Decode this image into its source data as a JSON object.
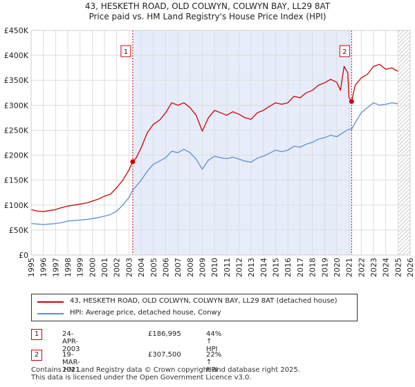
{
  "title_line1": "43, HESKETH ROAD, OLD COLWYN, COLWYN BAY, LL29 8AT",
  "title_line2": "Price paid vs. HM Land Registry's House Price Index (HPI)",
  "chart_data": {
    "type": "line",
    "xlim": [
      1995,
      2026
    ],
    "ylim": [
      0,
      450000
    ],
    "x_ticks": [
      1995,
      1996,
      1997,
      1998,
      1999,
      2000,
      2001,
      2002,
      2003,
      2004,
      2005,
      2006,
      2007,
      2008,
      2009,
      2010,
      2011,
      2012,
      2013,
      2014,
      2015,
      2016,
      2017,
      2018,
      2019,
      2020,
      2021,
      2022,
      2023,
      2024,
      2025,
      2026
    ],
    "y_ticks": [
      {
        "value": 0,
        "label": "£0"
      },
      {
        "value": 50000,
        "label": "£50K"
      },
      {
        "value": 100000,
        "label": "£100K"
      },
      {
        "value": 150000,
        "label": "£150K"
      },
      {
        "value": 200000,
        "label": "£200K"
      },
      {
        "value": 250000,
        "label": "£250K"
      },
      {
        "value": 300000,
        "label": "£300K"
      },
      {
        "value": 350000,
        "label": "£350K"
      },
      {
        "value": 400000,
        "label": "£400K"
      },
      {
        "value": 450000,
        "label": "£450K"
      }
    ],
    "shaded_range": [
      2003.31,
      2021.21
    ],
    "future_hatch_from": 2025.0,
    "series": [
      {
        "name": "43, HESKETH ROAD, OLD COLWYN, COLWYN BAY, LL29 8AT (detached house)",
        "color": "#cc0000",
        "points": [
          [
            1995,
            91000
          ],
          [
            1995.5,
            88000
          ],
          [
            1996,
            87000
          ],
          [
            1996.5,
            89000
          ],
          [
            1997,
            91000
          ],
          [
            1997.5,
            95000
          ],
          [
            1998,
            98000
          ],
          [
            1998.5,
            100000
          ],
          [
            1999,
            102000
          ],
          [
            1999.5,
            104000
          ],
          [
            2000,
            108000
          ],
          [
            2000.5,
            112000
          ],
          [
            2001,
            118000
          ],
          [
            2001.5,
            122000
          ],
          [
            2002,
            135000
          ],
          [
            2002.5,
            150000
          ],
          [
            2003,
            170000
          ],
          [
            2003.31,
            186995
          ],
          [
            2003.6,
            195000
          ],
          [
            2004,
            215000
          ],
          [
            2004.5,
            245000
          ],
          [
            2005,
            262000
          ],
          [
            2005.5,
            270000
          ],
          [
            2006,
            285000
          ],
          [
            2006.5,
            305000
          ],
          [
            2007,
            300000
          ],
          [
            2007.5,
            305000
          ],
          [
            2008,
            295000
          ],
          [
            2008.5,
            280000
          ],
          [
            2009,
            248000
          ],
          [
            2009.5,
            275000
          ],
          [
            2010,
            290000
          ],
          [
            2010.5,
            285000
          ],
          [
            2011,
            280000
          ],
          [
            2011.5,
            287000
          ],
          [
            2012,
            282000
          ],
          [
            2012.5,
            275000
          ],
          [
            2013,
            272000
          ],
          [
            2013.5,
            285000
          ],
          [
            2014,
            290000
          ],
          [
            2014.5,
            298000
          ],
          [
            2015,
            305000
          ],
          [
            2015.5,
            302000
          ],
          [
            2016,
            305000
          ],
          [
            2016.5,
            318000
          ],
          [
            2017,
            315000
          ],
          [
            2017.5,
            325000
          ],
          [
            2018,
            330000
          ],
          [
            2018.5,
            340000
          ],
          [
            2019,
            345000
          ],
          [
            2019.5,
            352000
          ],
          [
            2020,
            346000
          ],
          [
            2020.3,
            330000
          ],
          [
            2020.6,
            378000
          ],
          [
            2020.9,
            365000
          ],
          [
            2021.0,
            315000
          ],
          [
            2021.21,
            307500
          ],
          [
            2021.5,
            340000
          ],
          [
            2022,
            355000
          ],
          [
            2022.5,
            362000
          ],
          [
            2023,
            378000
          ],
          [
            2023.5,
            382000
          ],
          [
            2024,
            372000
          ],
          [
            2024.5,
            375000
          ],
          [
            2025,
            368000
          ]
        ]
      },
      {
        "name": "HPI: Average price, detached house, Conwy",
        "color": "#5b8fcf",
        "points": [
          [
            1995,
            63000
          ],
          [
            1995.5,
            62000
          ],
          [
            1996,
            61000
          ],
          [
            1996.5,
            62000
          ],
          [
            1997,
            63000
          ],
          [
            1997.5,
            65000
          ],
          [
            1998,
            68000
          ],
          [
            1998.5,
            69000
          ],
          [
            1999,
            70000
          ],
          [
            1999.5,
            71000
          ],
          [
            2000,
            73000
          ],
          [
            2000.5,
            75000
          ],
          [
            2001,
            78000
          ],
          [
            2001.5,
            81000
          ],
          [
            2002,
            88000
          ],
          [
            2002.5,
            100000
          ],
          [
            2003,
            115000
          ],
          [
            2003.31,
            130000
          ],
          [
            2003.6,
            138000
          ],
          [
            2004,
            150000
          ],
          [
            2004.5,
            168000
          ],
          [
            2005,
            182000
          ],
          [
            2005.5,
            188000
          ],
          [
            2006,
            195000
          ],
          [
            2006.5,
            208000
          ],
          [
            2007,
            205000
          ],
          [
            2007.5,
            212000
          ],
          [
            2008,
            205000
          ],
          [
            2008.5,
            192000
          ],
          [
            2009,
            172000
          ],
          [
            2009.5,
            190000
          ],
          [
            2010,
            198000
          ],
          [
            2010.5,
            195000
          ],
          [
            2011,
            193000
          ],
          [
            2011.5,
            196000
          ],
          [
            2012,
            192000
          ],
          [
            2012.5,
            188000
          ],
          [
            2013,
            186000
          ],
          [
            2013.5,
            194000
          ],
          [
            2014,
            198000
          ],
          [
            2014.5,
            204000
          ],
          [
            2015,
            210000
          ],
          [
            2015.5,
            207000
          ],
          [
            2016,
            210000
          ],
          [
            2016.5,
            218000
          ],
          [
            2017,
            216000
          ],
          [
            2017.5,
            222000
          ],
          [
            2018,
            226000
          ],
          [
            2018.5,
            232000
          ],
          [
            2019,
            235000
          ],
          [
            2019.5,
            240000
          ],
          [
            2020,
            237000
          ],
          [
            2020.5,
            245000
          ],
          [
            2021,
            252000
          ],
          [
            2021.21,
            252000
          ],
          [
            2021.5,
            265000
          ],
          [
            2022,
            285000
          ],
          [
            2022.5,
            295000
          ],
          [
            2023,
            305000
          ],
          [
            2023.5,
            300000
          ],
          [
            2024,
            302000
          ],
          [
            2024.5,
            305000
          ],
          [
            2025,
            303000
          ]
        ]
      }
    ],
    "sales": [
      {
        "label": "1",
        "x": 2003.31,
        "y": 186995
      },
      {
        "label": "2",
        "x": 2021.21,
        "y": 307500
      }
    ]
  },
  "legend": {
    "property_label": "43, HESKETH ROAD, OLD COLWYN, COLWYN BAY, LL29 8AT (detached house)",
    "hpi_label": "HPI: Average price, detached house, Conwy",
    "property_color": "#cc0000",
    "hpi_color": "#5b8fcf"
  },
  "sales_table": [
    {
      "num": "1",
      "date": "24-APR-2003",
      "price": "£186,995",
      "hpi": "44% ↑ HPI"
    },
    {
      "num": "2",
      "date": "19-MAR-2021",
      "price": "£307,500",
      "hpi": "22% ↑ HPI"
    }
  ],
  "footer": {
    "line1": "Contains HM Land Registry data © Crown copyright and database right 2025.",
    "line2": "This data is licensed under the Open Government Licence v3.0."
  }
}
